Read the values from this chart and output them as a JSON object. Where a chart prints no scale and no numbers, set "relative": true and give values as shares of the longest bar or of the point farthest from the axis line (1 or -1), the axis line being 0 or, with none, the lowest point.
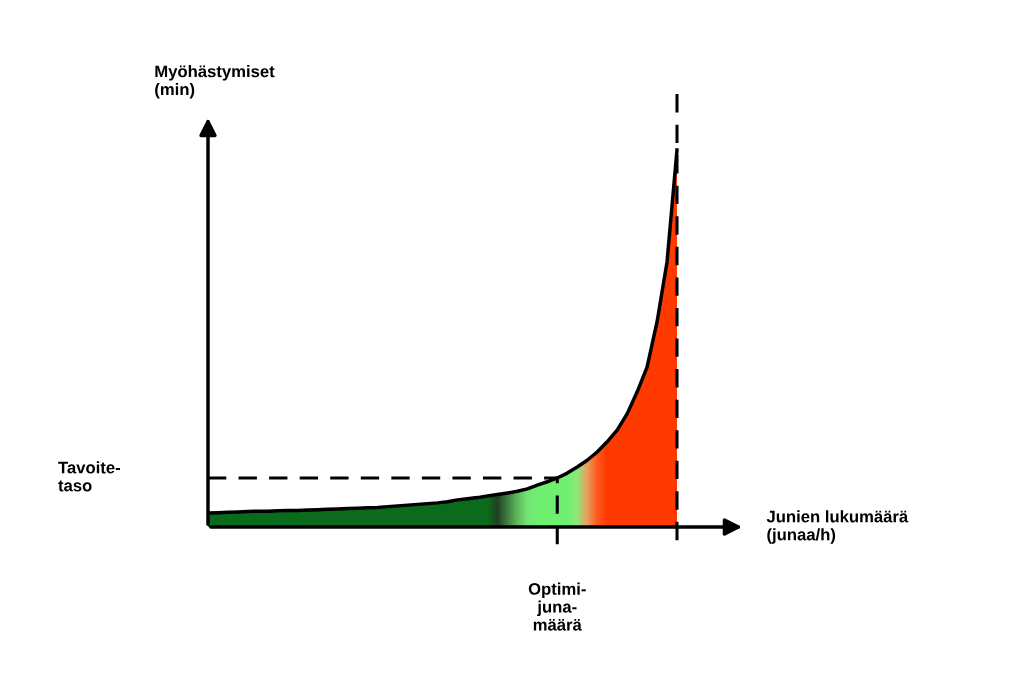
{
  "chart_data": {
    "type": "line",
    "relative": true,
    "ylabel": "Myöhästymiset\n(min)",
    "annotations": [
      "Junien lukumäärä\n(junaa/h)",
      "Optimi-\njuna-\nmäärä"
    ],
    "categories": [
      null,
      null,
      null,
      null,
      null,
      null,
      null,
      null,
      null,
      null,
      null,
      null,
      null,
      null,
      null,
      null,
      null,
      null,
      null,
      null,
      null,
      null,
      null,
      null,
      null,
      null,
      null,
      null,
      null,
      null,
      null,
      null,
      null,
      null,
      null,
      null,
      null,
      null,
      null,
      null,
      null,
      null,
      null,
      null,
      null,
      null,
      null,
      null
    ],
    "series": [
      {
        "color": "#000000",
        "values": [
          0.037,
          0.038,
          0.039,
          0.04,
          0.041,
          0.042,
          0.042,
          0.043,
          0.044,
          0.044,
          0.045,
          0.046,
          0.047,
          0.048,
          0.049,
          0.05,
          0.051,
          0.052,
          0.054,
          0.056,
          0.058,
          0.06,
          0.062,
          0.064,
          0.067,
          0.072,
          0.075,
          0.078,
          0.082,
          0.086,
          0.09,
          0.095,
          0.101,
          0.111,
          0.12,
          0.13,
          0.143,
          0.159,
          0.177,
          0.199,
          0.226,
          0.257,
          0.3,
          0.358,
          0.424,
          0.544,
          0.703,
          1.0
        ],
        "colors": [
          "#0b6b1c",
          "#0b6b1c",
          "#0b6b1c",
          "#0b6b1c",
          "#0b6b1c",
          "#0b6b1c",
          "#0b6b1c",
          "#0b6b1c",
          "#0b6b1c",
          "#0b6b1c",
          "#0b6b1c",
          "#0b6b1c",
          "#0b6b1c",
          "#0b6b1c",
          "#0b6b1c",
          "#0b6b1c",
          "#0b6b1c",
          "#0b6b1c",
          "#0b6b1c",
          "#0b6b1c",
          "#0b6b1c",
          "#0b6b1c",
          "#0b6b1c",
          "#0b6b1c",
          "#0b6b1c",
          "#0b6b1c",
          "#0b6b1c",
          "#0b6b1c",
          "#0b6b1c",
          "#233f24",
          "#3e7e3e",
          "#5fb85f",
          "#74e474",
          "#70f070",
          "#70f070",
          "#70f070",
          "#70f070",
          "#8ee87a",
          "#e8a060",
          "#ff5a20",
          "#ff3a00",
          "#ff3a00",
          "#ff3a00",
          "#ff3a00",
          "#ff3a00",
          "#ff3a00",
          "#ff3a00",
          "#ff3a00"
        ]
      }
    ],
    "ref_lines": [
      {
        "axis": "y",
        "value": 0.13,
        "label": "Tavoite-\ntaso",
        "line_style": "dashed",
        "color": "#000000"
      }
    ],
    "legend": false
  }
}
